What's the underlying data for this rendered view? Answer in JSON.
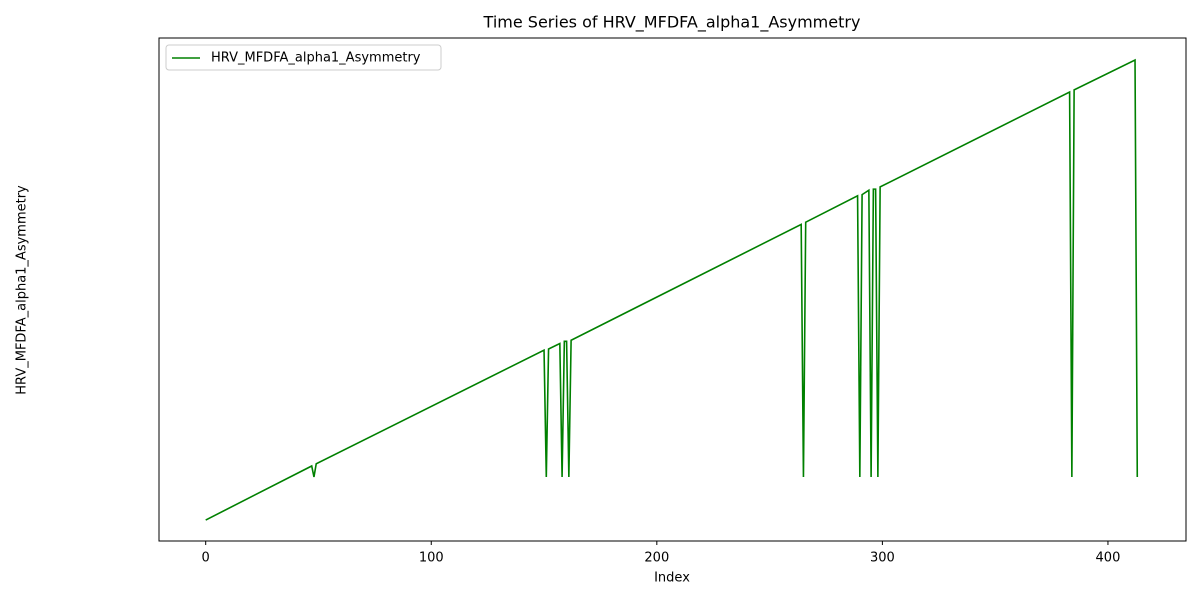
{
  "chart_data": {
    "type": "line",
    "title": "Time Series of HRV_MFDFA_alpha1_Asymmetry",
    "xlabel": "Index",
    "ylabel": "HRV_MFDFA_alpha1_Asymmetry",
    "x": [
      0,
      47,
      48,
      49,
      150,
      151,
      152,
      157,
      158,
      159,
      160,
      161,
      162,
      264,
      265,
      266,
      289,
      290,
      291,
      294,
      295,
      296,
      297,
      298,
      299,
      383,
      384,
      385,
      412,
      413
    ],
    "series": [
      {
        "name": "HRV_MFDFA_alpha1_Asymmetry",
        "color": "#008000",
        "values": [
          0,
          49,
          39,
          51,
          154,
          39,
          155,
          160,
          39,
          162,
          162,
          39,
          163,
          268,
          39,
          270,
          294,
          39,
          295,
          299,
          39,
          300,
          300,
          39,
          302,
          388,
          39,
          390,
          417,
          39
        ]
      }
    ],
    "xlim": [
      -20.7,
      434.6
    ],
    "ylim": [
      -19,
      437
    ],
    "xticks": [
      0,
      100,
      200,
      300,
      400
    ],
    "legend": "upper left"
  }
}
